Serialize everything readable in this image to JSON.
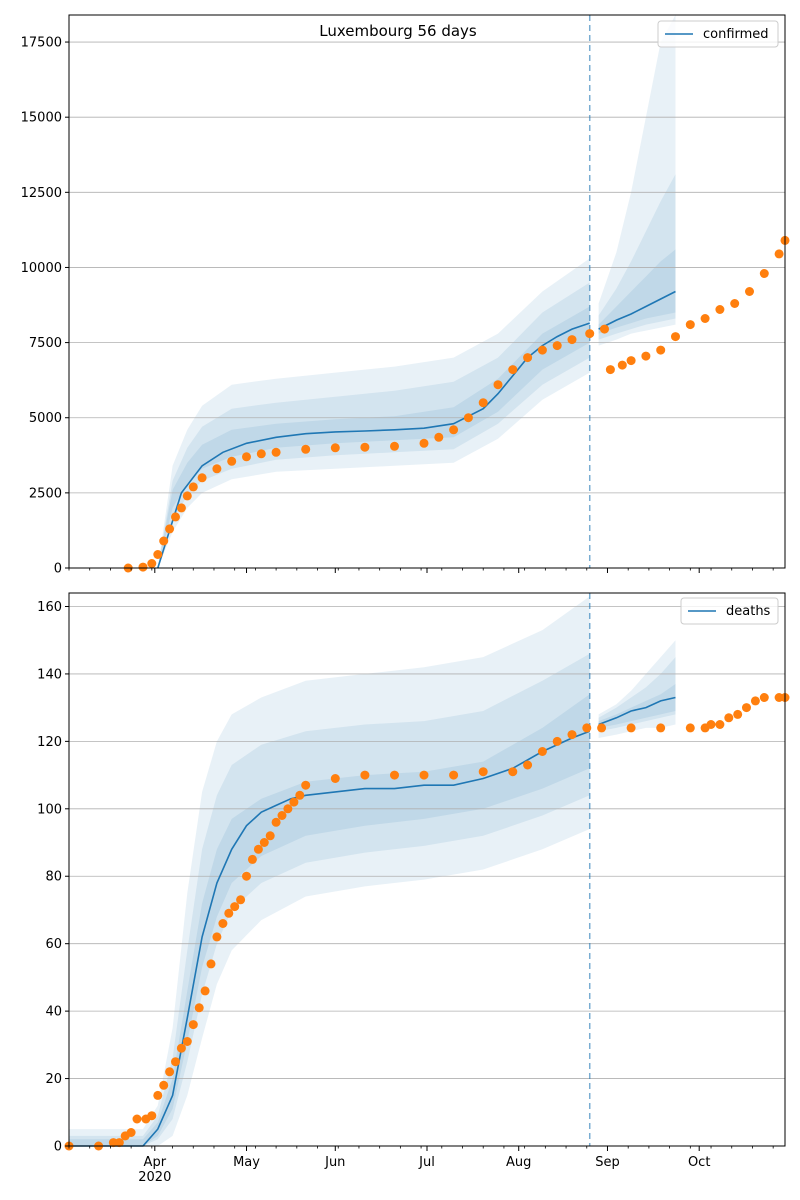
{
  "figure": {
    "colors": {
      "model": "#1f77b4",
      "observed": "#ff7f0e",
      "band": "#1f77b4",
      "grid": "#b0b0b0",
      "cutoff": "#1f77b4"
    }
  },
  "chart_data": [
    {
      "type": "line",
      "title": "Luxembourg 56 days",
      "legend": {
        "label": "confirmed",
        "placement": "top-right"
      },
      "ylim": [
        0,
        18400
      ],
      "yticks": [
        0,
        2500,
        5000,
        7500,
        10000,
        12500,
        15000,
        17500
      ],
      "ytick_labels": [
        "0",
        "2500",
        "5000",
        "7500",
        "10000",
        "12500",
        "15000",
        "17500"
      ],
      "grid": "y",
      "cutoff_day": 176,
      "model": {
        "days": [
          30,
          38,
          45,
          52,
          60,
          70,
          80,
          90,
          100,
          110,
          120,
          130,
          140,
          145,
          150,
          155,
          160,
          165,
          170,
          176
        ],
        "values": [
          0,
          2500,
          3400,
          3850,
          4150,
          4350,
          4470,
          4530,
          4560,
          4600,
          4650,
          4800,
          5300,
          5800,
          6400,
          7000,
          7400,
          7700,
          7950,
          8150
        ]
      },
      "forecast": {
        "days": [
          179,
          185,
          190,
          195,
          200,
          205
        ],
        "values": [
          7950,
          8250,
          8450,
          8700,
          8950,
          9200
        ]
      },
      "bands": [
        {
          "days": [
            30,
            35,
            40,
            45,
            55,
            70,
            90,
            110,
            130,
            145,
            160,
            176
          ],
          "lower": [
            0,
            1200,
            2000,
            2500,
            2950,
            3200,
            3300,
            3400,
            3500,
            4300,
            5600,
            6500
          ],
          "upper": [
            0,
            3400,
            4600,
            5400,
            6100,
            6300,
            6500,
            6700,
            7000,
            7800,
            9200,
            10300
          ]
        },
        {
          "days": [
            30,
            35,
            40,
            45,
            55,
            70,
            90,
            110,
            130,
            145,
            160,
            176
          ],
          "lower": [
            0,
            1600,
            2400,
            2900,
            3300,
            3600,
            3750,
            3850,
            3950,
            4800,
            6100,
            7000
          ],
          "upper": [
            0,
            2900,
            4000,
            4700,
            5300,
            5500,
            5700,
            5900,
            6200,
            7000,
            8500,
            9500
          ]
        },
        {
          "days": [
            30,
            35,
            40,
            45,
            55,
            70,
            90,
            110,
            130,
            145,
            160,
            176
          ],
          "lower": [
            0,
            2000,
            2800,
            3300,
            3700,
            4000,
            4150,
            4250,
            4350,
            5200,
            6600,
            7500
          ],
          "upper": [
            0,
            2600,
            3500,
            4100,
            4600,
            4800,
            4950,
            5050,
            5350,
            6300,
            7800,
            8700
          ]
        }
      ],
      "forecast_bands": [
        {
          "days": [
            179,
            185,
            190,
            195,
            200,
            205
          ],
          "lower": [
            7400,
            7600,
            7800,
            7900,
            8000,
            8100
          ],
          "upper": [
            8800,
            10500,
            12500,
            15000,
            17500,
            20000
          ]
        },
        {
          "days": [
            179,
            185,
            190,
            195,
            200,
            205
          ],
          "lower": [
            7600,
            7800,
            7950,
            8100,
            8200,
            8300
          ],
          "upper": [
            8400,
            9300,
            10200,
            11200,
            12200,
            13100
          ]
        },
        {
          "days": [
            179,
            185,
            190,
            195,
            200,
            205
          ],
          "lower": [
            7800,
            8000,
            8150,
            8300,
            8400,
            8500
          ],
          "upper": [
            8100,
            8700,
            9200,
            9700,
            10200,
            10600
          ]
        }
      ],
      "observed": {
        "days": [
          20,
          25,
          28,
          30,
          32,
          34,
          36,
          38,
          40,
          42,
          45,
          50,
          55,
          60,
          65,
          70,
          80,
          90,
          100,
          110,
          120,
          125,
          130,
          135,
          140,
          145,
          150,
          155,
          160,
          165,
          170,
          176,
          181,
          183,
          187,
          190,
          195,
          200,
          205,
          210,
          215,
          220,
          225,
          230,
          235,
          240,
          242
        ],
        "values": [
          0,
          30,
          150,
          450,
          900,
          1300,
          1700,
          2000,
          2400,
          2700,
          3000,
          3300,
          3550,
          3700,
          3800,
          3850,
          3950,
          4000,
          4020,
          4050,
          4150,
          4350,
          4600,
          5000,
          5500,
          6100,
          6600,
          7000,
          7250,
          7400,
          7600,
          7800,
          7950,
          6600,
          6750,
          6900,
          7050,
          7250,
          7700,
          8100,
          8300,
          8600,
          8800,
          9200,
          9800,
          10450,
          10900
        ]
      },
      "x_axis": {
        "ticks": [],
        "labels": []
      }
    },
    {
      "type": "line",
      "title": "",
      "legend": {
        "label": "deaths",
        "placement": "top-right"
      },
      "ylim": [
        0,
        164
      ],
      "yticks": [
        0,
        20,
        40,
        60,
        80,
        100,
        120,
        140,
        160
      ],
      "ytick_labels": [
        "0",
        "20",
        "40",
        "60",
        "80",
        "100",
        "120",
        "140",
        "160"
      ],
      "grid": "y",
      "cutoff_day": 176,
      "model": {
        "days": [
          0,
          25,
          30,
          35,
          40,
          45,
          50,
          55,
          60,
          65,
          70,
          75,
          80,
          90,
          100,
          110,
          120,
          130,
          140,
          150,
          160,
          170,
          176
        ],
        "values": [
          0,
          0,
          5,
          15,
          38,
          62,
          78,
          88,
          95,
          99,
          101,
          103,
          104,
          105,
          106,
          106,
          107,
          107,
          109,
          112,
          117,
          121,
          123
        ]
      },
      "forecast": {
        "days": [
          179,
          185,
          190,
          195,
          200,
          205
        ],
        "values": [
          125,
          127,
          129,
          130,
          132,
          133
        ]
      },
      "bands": [
        {
          "days": [
            0,
            25,
            30,
            35,
            40,
            45,
            50,
            55,
            65,
            80,
            100,
            120,
            140,
            160,
            176
          ],
          "lower": [
            0,
            0,
            0,
            3,
            15,
            32,
            48,
            58,
            67,
            74,
            77,
            79,
            82,
            88,
            94
          ],
          "upper": [
            5,
            5,
            12,
            35,
            75,
            105,
            120,
            128,
            133,
            138,
            140,
            142,
            145,
            153,
            163
          ]
        },
        {
          "days": [
            0,
            25,
            30,
            35,
            40,
            45,
            50,
            55,
            65,
            80,
            100,
            120,
            140,
            160,
            176
          ],
          "lower": [
            0,
            0,
            2,
            8,
            25,
            45,
            60,
            70,
            78,
            84,
            87,
            89,
            92,
            98,
            104
          ],
          "upper": [
            3,
            3,
            9,
            26,
            58,
            88,
            104,
            113,
            119,
            123,
            125,
            126,
            129,
            138,
            146
          ]
        },
        {
          "days": [
            0,
            25,
            30,
            35,
            40,
            45,
            50,
            55,
            65,
            80,
            100,
            120,
            140,
            160,
            176
          ],
          "lower": [
            0,
            0,
            3,
            11,
            31,
            53,
            68,
            78,
            86,
            92,
            95,
            97,
            100,
            106,
            112
          ],
          "upper": [
            2,
            2,
            7,
            20,
            46,
            72,
            88,
            97,
            103,
            108,
            110,
            111,
            114,
            124,
            134
          ]
        }
      ],
      "forecast_bands": [
        {
          "days": [
            179,
            185,
            190,
            195,
            200,
            205
          ],
          "lower": [
            121,
            122,
            123,
            124,
            124,
            125
          ],
          "upper": [
            128,
            131,
            135,
            140,
            145,
            150
          ]
        },
        {
          "days": [
            179,
            185,
            190,
            195,
            200,
            205
          ],
          "lower": [
            123,
            124,
            125,
            126,
            127,
            128
          ],
          "upper": [
            127,
            130,
            133,
            136,
            140,
            145
          ]
        },
        {
          "days": [
            179,
            185,
            190,
            195,
            200,
            205
          ],
          "lower": [
            124,
            125,
            126,
            127,
            128,
            129
          ],
          "upper": [
            126,
            128,
            130,
            132,
            134,
            137
          ]
        }
      ],
      "observed": {
        "days": [
          0,
          10,
          15,
          17,
          19,
          21,
          23,
          26,
          28,
          30,
          32,
          34,
          36,
          38,
          40,
          42,
          44,
          46,
          48,
          50,
          52,
          54,
          56,
          58,
          60,
          62,
          64,
          66,
          68,
          70,
          72,
          74,
          76,
          78,
          80,
          90,
          100,
          110,
          120,
          130,
          140,
          150,
          155,
          160,
          165,
          170,
          175,
          180,
          190,
          200,
          210,
          215,
          217,
          220,
          223,
          226,
          229,
          232,
          235,
          240,
          242
        ],
        "values": [
          0,
          0,
          1,
          1,
          3,
          4,
          8,
          8,
          9,
          15,
          18,
          22,
          25,
          29,
          31,
          36,
          41,
          46,
          54,
          62,
          66,
          69,
          71,
          73,
          80,
          85,
          88,
          90,
          92,
          96,
          98,
          100,
          102,
          104,
          107,
          109,
          110,
          110,
          110,
          110,
          111,
          111,
          113,
          117,
          120,
          122,
          124,
          124,
          124,
          124,
          124,
          124,
          125,
          125,
          127,
          128,
          130,
          132,
          133,
          133,
          133
        ]
      },
      "x_axis": {
        "ticks": [
          29,
          60,
          90,
          121,
          152,
          182,
          213
        ],
        "labels": [
          "Apr\n2020",
          "May",
          "Jun",
          "Jul",
          "Aug",
          "Sep",
          "Oct"
        ]
      }
    }
  ]
}
